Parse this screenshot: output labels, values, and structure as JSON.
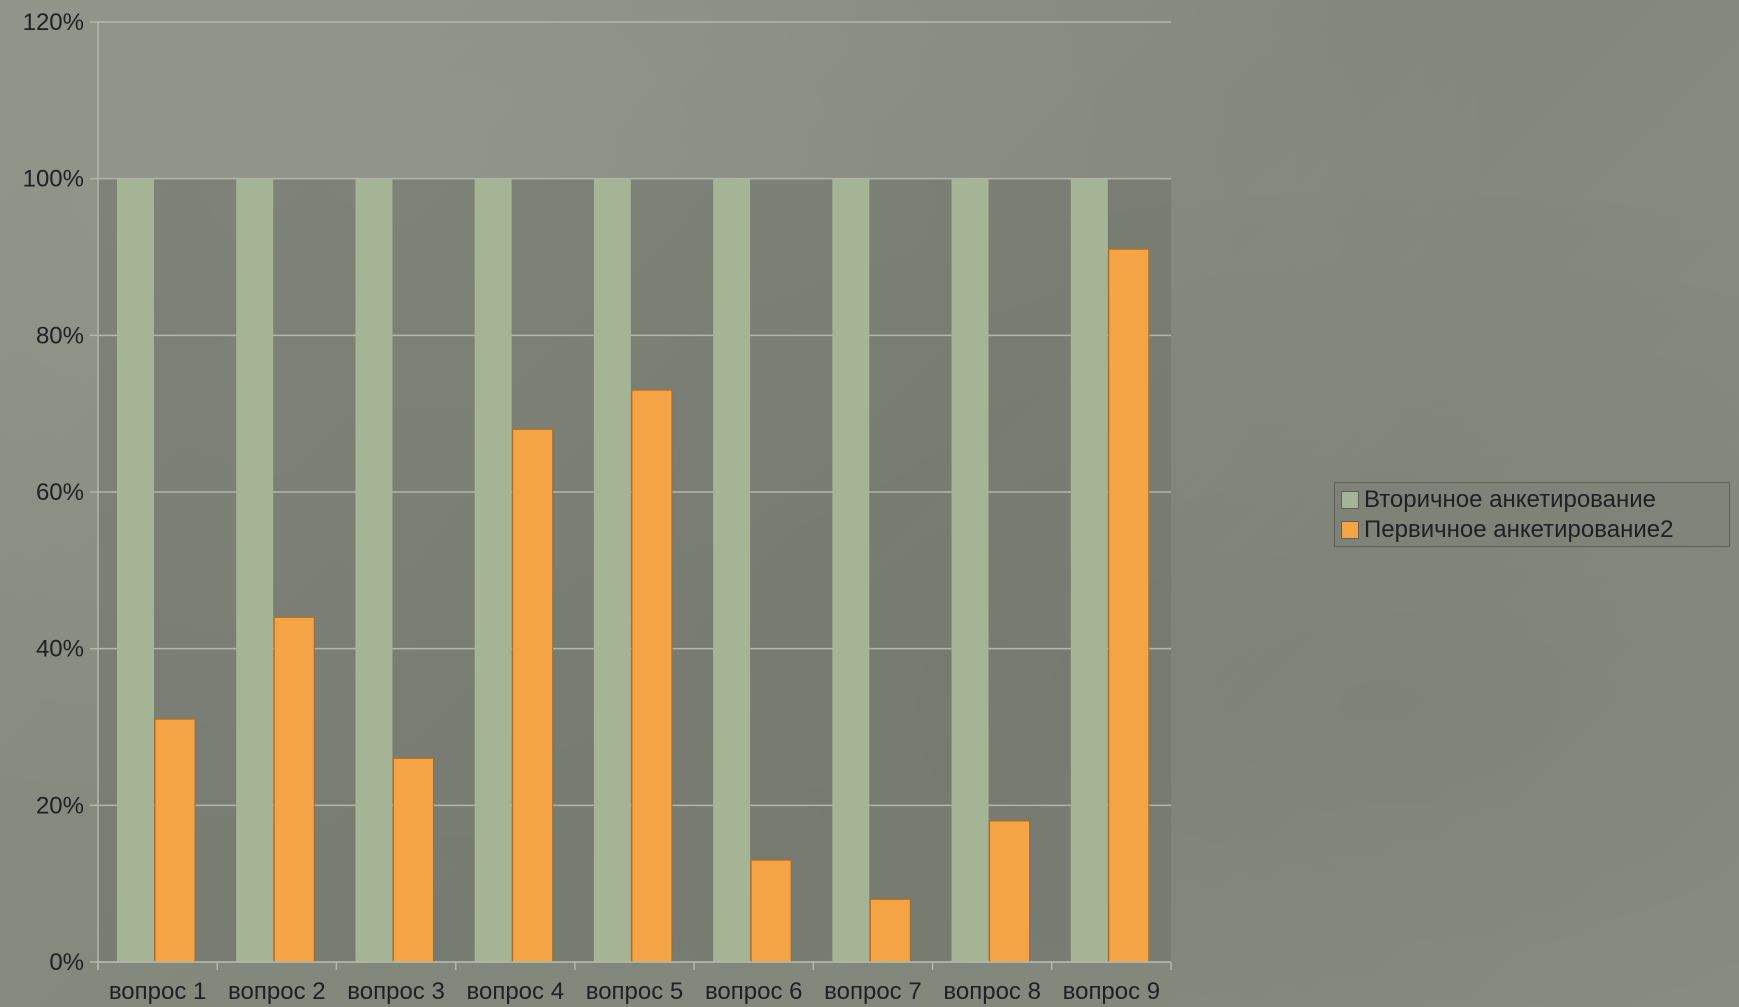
{
  "chart_data": {
    "type": "bar",
    "categories": [
      "вопрос 1",
      "вопрос 2",
      "вопрос 3",
      "вопрос 4",
      "вопрос 5",
      "вопрос 6",
      "вопрос 7",
      "вопрос 8",
      "вопрос 9"
    ],
    "series": [
      {
        "name": "Вторичное анкетирование",
        "color": "#a5b495",
        "values": [
          100,
          100,
          100,
          100,
          100,
          100,
          100,
          100,
          100
        ]
      },
      {
        "name": "Первичное анкетирование2",
        "color": "#f4a444",
        "values": [
          31,
          44,
          26,
          68,
          73,
          13,
          8,
          18,
          91
        ]
      }
    ],
    "y_ticks": [
      "0%",
      "20%",
      "40%",
      "60%",
      "80%",
      "100%",
      "120%"
    ],
    "ylim": [
      0,
      120
    ],
    "grid": true,
    "legend_position": "right"
  }
}
